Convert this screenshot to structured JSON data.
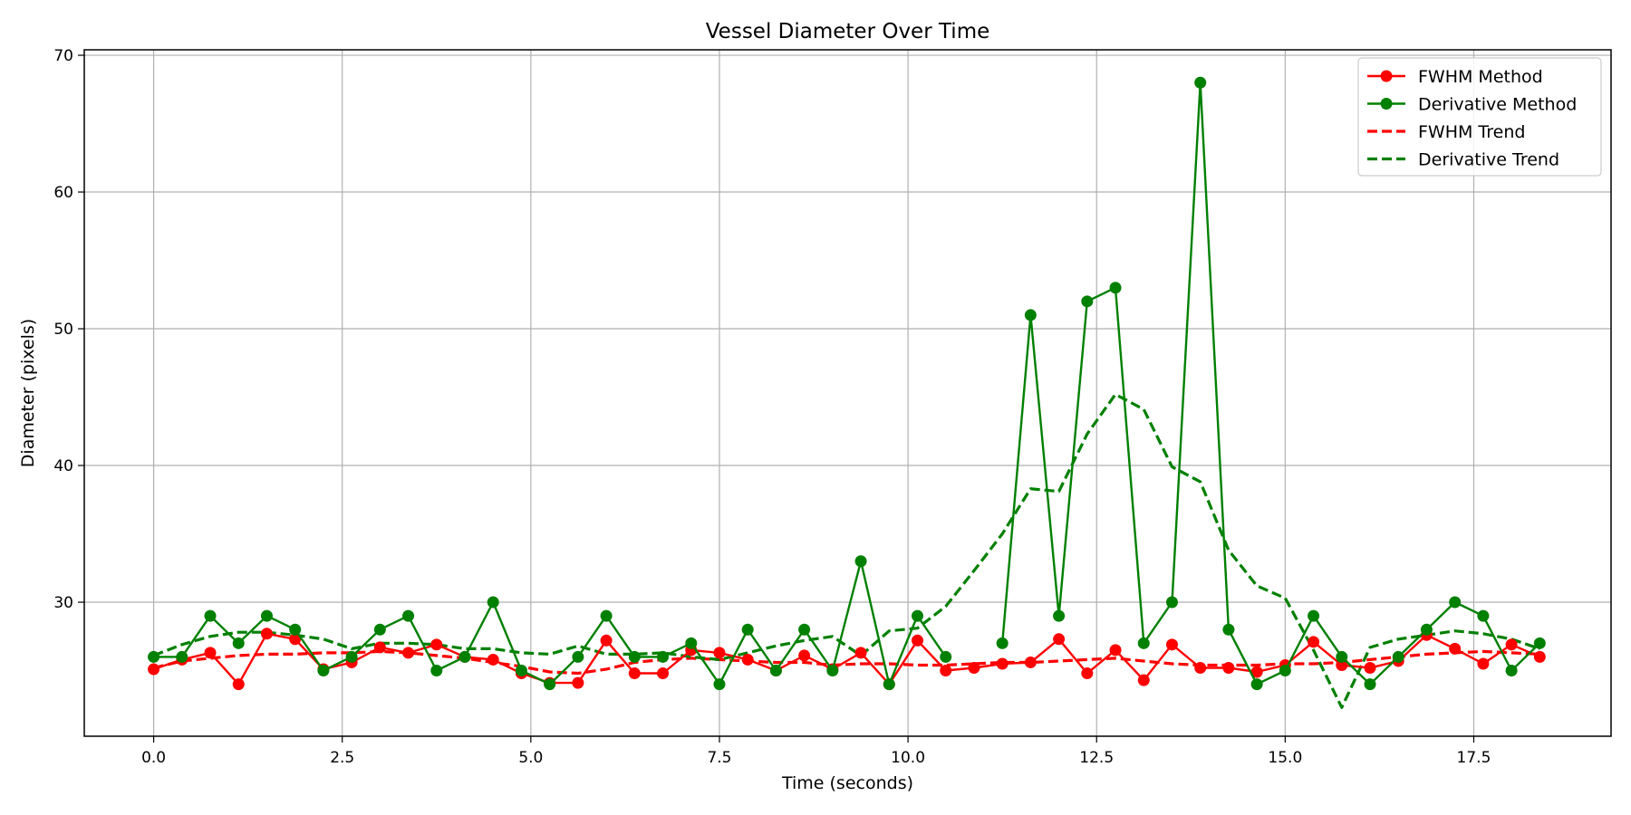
{
  "chart_data": {
    "type": "line",
    "title": "Vessel Diameter Over Time",
    "xlabel": "Time (seconds)",
    "ylabel": "Diameter (pixels)",
    "xlim": [
      -0.92,
      19.32
    ],
    "ylim": [
      20.2,
      70.4
    ],
    "xticks": [
      0,
      2.5,
      5,
      7.5,
      10,
      12.5,
      15,
      17.5
    ],
    "xtick_labels": [
      "0.0",
      "2.5",
      "5.0",
      "7.5",
      "10.0",
      "12.5",
      "15.0",
      "17.5"
    ],
    "yticks": [
      30,
      40,
      50,
      60,
      70
    ],
    "ytick_labels": [
      "30",
      "40",
      "50",
      "60",
      "70"
    ],
    "grid": true,
    "legend_position": "top-right",
    "x": [
      0.0,
      0.375,
      0.75,
      1.125,
      1.5,
      1.875,
      2.25,
      2.625,
      3.0,
      3.375,
      3.75,
      4.125,
      4.5,
      4.875,
      5.25,
      5.625,
      6.0,
      6.375,
      6.75,
      7.125,
      7.5,
      7.875,
      8.25,
      8.625,
      9.0,
      9.375,
      9.75,
      10.125,
      10.5,
      10.875,
      11.25,
      11.625,
      12.0,
      12.375,
      12.75,
      13.125,
      13.5,
      13.875,
      14.25,
      14.625,
      15.0,
      15.375,
      15.75,
      16.125,
      16.5,
      16.875,
      17.25,
      17.625,
      18.0,
      18.375
    ],
    "series": [
      {
        "name": "FWHM Method",
        "style": "solid-marker",
        "color": "#ff0000",
        "values": [
          25.1,
          25.8,
          26.3,
          24.0,
          27.7,
          27.3,
          25.1,
          25.6,
          26.7,
          26.3,
          26.9,
          26.0,
          25.8,
          24.8,
          24.1,
          24.1,
          27.2,
          24.8,
          24.8,
          26.5,
          26.3,
          25.8,
          25.0,
          26.1,
          25.1,
          26.3,
          24.0,
          27.2,
          25.0,
          25.2,
          25.5,
          25.6,
          27.3,
          24.8,
          26.5,
          24.3,
          26.9,
          25.2,
          25.2,
          24.9,
          25.4,
          27.1,
          25.4,
          25.2,
          25.7,
          27.6,
          26.6,
          25.5,
          26.9,
          26.0
        ]
      },
      {
        "name": "Derivative Method",
        "style": "solid-marker",
        "color": "#008000",
        "values": [
          26.0,
          26.0,
          29.0,
          27.0,
          29.0,
          28.0,
          25.0,
          26.0,
          28.0,
          29.0,
          25.0,
          26.0,
          30.0,
          25.0,
          24.0,
          26.0,
          29.0,
          26.0,
          26.0,
          27.0,
          24.0,
          28.0,
          25.0,
          28.0,
          25.0,
          33.0,
          24.0,
          29.0,
          26.0,
          null,
          27.0,
          51.0,
          29.0,
          52.0,
          53.0,
          27.0,
          30.0,
          68.0,
          28.0,
          24.0,
          25.0,
          29.0,
          26.0,
          24.0,
          26.0,
          28.0,
          30.0,
          29.0,
          25.0,
          27.0
        ]
      },
      {
        "name": "FWHM Trend",
        "style": "dashed",
        "color": "#ff0000",
        "values": [
          25.2,
          25.7,
          25.9,
          26.1,
          26.2,
          26.2,
          26.3,
          26.3,
          26.4,
          26.3,
          26.1,
          25.9,
          25.6,
          25.3,
          24.9,
          24.8,
          25.1,
          25.6,
          25.8,
          25.9,
          25.8,
          25.7,
          25.6,
          25.6,
          25.4,
          25.5,
          25.5,
          25.4,
          25.4,
          25.5,
          25.6,
          25.6,
          25.7,
          25.8,
          25.9,
          25.7,
          25.5,
          25.4,
          25.4,
          25.4,
          25.5,
          25.5,
          25.6,
          25.8,
          26.0,
          26.2,
          26.3,
          26.4,
          26.3,
          26.2
        ]
      },
      {
        "name": "Derivative Trend",
        "style": "dashed",
        "color": "#008000",
        "values": [
          26.1,
          26.9,
          27.5,
          27.8,
          27.8,
          27.6,
          27.3,
          26.6,
          27.0,
          27.0,
          26.9,
          26.6,
          26.6,
          26.3,
          26.2,
          26.8,
          26.2,
          26.2,
          26.3,
          26.0,
          25.8,
          26.3,
          26.8,
          27.2,
          27.5,
          26.1,
          27.9,
          28.1,
          29.7,
          32.3,
          35.0,
          38.3,
          38.1,
          42.3,
          45.2,
          44.1,
          39.9,
          38.8,
          33.8,
          31.2,
          30.3,
          26.5,
          22.3,
          26.7,
          27.3,
          27.6,
          27.9,
          27.7,
          27.3,
          26.6
        ]
      }
    ]
  }
}
